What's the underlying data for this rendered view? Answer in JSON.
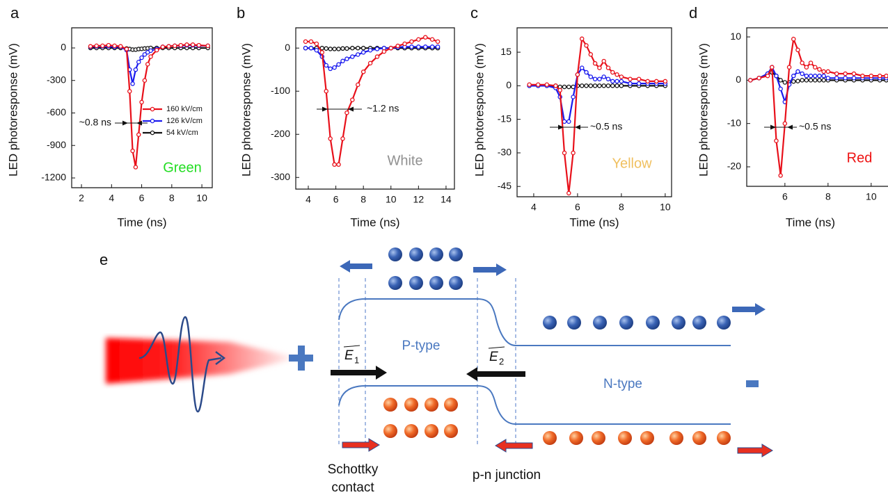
{
  "chart_data": [
    {
      "type": "line",
      "panel": "a",
      "ylabel": "LED photoresponse (mV)",
      "xlabel": "Time (ns)",
      "xlim": [
        1.35,
        10.69
      ],
      "xticks": [
        2,
        4,
        6,
        8,
        10
      ],
      "ylim": [
        -1290,
        186
      ],
      "yticks": [
        0,
        -300,
        -600,
        -900,
        -1200
      ],
      "x": [
        2.6,
        3.0,
        3.4,
        3.8,
        4.2,
        4.6,
        5.0,
        5.2,
        5.4,
        5.6,
        5.8,
        6.0,
        6.2,
        6.4,
        6.6,
        7.0,
        7.4,
        7.8,
        8.2,
        8.6,
        9.0,
        9.4,
        9.8,
        10.4
      ],
      "series": [
        {
          "name": "160 kV/cm",
          "color": "#e8101a",
          "values": [
            15,
            20,
            20,
            25,
            20,
            15,
            -10,
            -400,
            -950,
            -1100,
            -800,
            -500,
            -300,
            -150,
            -80,
            -20,
            10,
            15,
            20,
            25,
            30,
            30,
            25,
            20
          ]
        },
        {
          "name": "126 kV/cm",
          "color": "#1a1aee",
          "values": [
            10,
            15,
            15,
            15,
            10,
            10,
            -20,
            -200,
            -330,
            -200,
            -130,
            -90,
            -60,
            -40,
            -25,
            -10,
            10,
            15,
            20,
            20,
            25,
            25,
            20,
            20
          ]
        },
        {
          "name": "54 kV/cm",
          "color": "#111111",
          "values": [
            0,
            0,
            0,
            0,
            0,
            0,
            -5,
            -10,
            -15,
            -15,
            -10,
            -8,
            -5,
            -3,
            0,
            0,
            0,
            0,
            0,
            0,
            0,
            0,
            0,
            0
          ]
        }
      ],
      "legend": true,
      "annotation": "~0.8 ns",
      "label": "Green",
      "label_color": "#22dd22"
    },
    {
      "type": "line",
      "panel": "b",
      "ylabel": "LED photoresponse (mV)",
      "xlabel": "Time (ns)",
      "xlim": [
        3.09,
        14.61
      ],
      "xticks": [
        4,
        6,
        8,
        10,
        12,
        14
      ],
      "ylim": [
        -327,
        47
      ],
      "yticks": [
        0,
        -100,
        -200,
        -300
      ],
      "x": [
        3.8,
        4.2,
        4.6,
        5.0,
        5.3,
        5.6,
        5.9,
        6.2,
        6.5,
        6.8,
        7.2,
        7.6,
        8.0,
        8.5,
        9.0,
        9.5,
        10,
        10.5,
        11,
        11.5,
        12,
        12.5,
        13,
        13.4
      ],
      "series": [
        {
          "color": "#e8101a",
          "values": [
            15,
            15,
            10,
            -10,
            -100,
            -210,
            -270,
            -270,
            -210,
            -150,
            -120,
            -85,
            -55,
            -35,
            -20,
            -8,
            0,
            5,
            10,
            15,
            20,
            25,
            20,
            15
          ]
        },
        {
          "color": "#1a1aee",
          "values": [
            0,
            0,
            -5,
            -20,
            -40,
            -48,
            -45,
            -38,
            -30,
            -25,
            -20,
            -15,
            -10,
            -5,
            -2,
            0,
            0,
            2,
            3,
            3,
            3,
            3,
            3,
            3
          ]
        },
        {
          "color": "#111111",
          "values": [
            0,
            0,
            0,
            0,
            -1,
            -2,
            -2,
            -2,
            -1,
            -1,
            0,
            0,
            0,
            0,
            0,
            0,
            0,
            0,
            0,
            0,
            0,
            0,
            0,
            0
          ]
        }
      ],
      "legend": false,
      "annotation": "~1.2 ns",
      "label": "White",
      "label_color": "#909090"
    },
    {
      "type": "line",
      "panel": "c",
      "ylabel": "LED photoresponse (mV)",
      "xlabel": "Time (ns)",
      "xlim": [
        3.24,
        10.29
      ],
      "xticks": [
        4,
        6,
        8,
        10
      ],
      "ylim": [
        -49.6,
        25.9
      ],
      "yticks": [
        15,
        0,
        -15,
        -30,
        -45
      ],
      "x": [
        3.8,
        4.2,
        4.6,
        5.0,
        5.2,
        5.4,
        5.6,
        5.8,
        6.0,
        6.2,
        6.4,
        6.6,
        6.8,
        7.0,
        7.2,
        7.4,
        7.6,
        7.8,
        8.0,
        8.4,
        8.8,
        9.2,
        9.6,
        10.0
      ],
      "series": [
        {
          "color": "#e8101a",
          "values": [
            0.5,
            0.5,
            0.5,
            0,
            -2,
            -30,
            -48,
            -30,
            5,
            21,
            18,
            14,
            10,
            8,
            11,
            8,
            6,
            5,
            4,
            3,
            3,
            2,
            2,
            2
          ]
        },
        {
          "color": "#1a1aee",
          "values": [
            0,
            0,
            0,
            -1,
            -5,
            -16,
            -16,
            -5,
            5,
            8,
            6,
            4,
            3,
            3,
            4,
            3,
            2,
            2,
            2,
            1,
            1,
            1,
            1,
            1
          ]
        },
        {
          "color": "#111111",
          "values": [
            0,
            0,
            0,
            0,
            -0.5,
            -0.5,
            -0.5,
            -0.5,
            0,
            0,
            0,
            0,
            0,
            0,
            0,
            0,
            0,
            0,
            0,
            0,
            0,
            0,
            0,
            0
          ]
        }
      ],
      "legend": false,
      "annotation": "~0.5 ns",
      "label": "Yellow",
      "label_color": "#f0c060"
    },
    {
      "type": "line",
      "panel": "d",
      "ylabel": "LED photoresponse (mV)",
      "xlabel": "Time (ns)",
      "xlim": [
        4.23,
        10.78
      ],
      "xticks": [
        6,
        8,
        10
      ],
      "ylim": [
        -24.5,
        12.1
      ],
      "yticks": [
        10,
        0,
        -10,
        -20
      ],
      "x": [
        4.4,
        4.8,
        5.2,
        5.4,
        5.6,
        5.8,
        6.0,
        6.2,
        6.4,
        6.6,
        6.8,
        7.0,
        7.2,
        7.4,
        7.6,
        7.8,
        8.0,
        8.4,
        8.8,
        9.2,
        9.6,
        10.0,
        10.4,
        10.7
      ],
      "series": [
        {
          "color": "#e8101a",
          "values": [
            0,
            0.5,
            1,
            3,
            -14,
            -22,
            -10,
            3,
            9.5,
            7,
            4,
            3,
            4,
            3,
            2.5,
            2,
            2,
            1.5,
            1.5,
            1.5,
            1,
            1,
            1,
            1
          ]
        },
        {
          "color": "#1a1aee",
          "values": [
            0,
            0.5,
            1.5,
            3,
            1,
            -2,
            -5,
            -1,
            1,
            2,
            1.5,
            1,
            1,
            1,
            1,
            1,
            0.5,
            0.5,
            0.5,
            0.5,
            0.5,
            0.5,
            0.5,
            0.5
          ]
        },
        {
          "color": "#111111",
          "values": [
            0,
            0.5,
            1.5,
            1.8,
            1,
            0,
            -0.5,
            -0.5,
            -0.3,
            -0.2,
            0,
            0,
            0,
            0,
            0,
            0,
            0,
            0,
            0,
            0,
            0,
            0,
            0,
            0
          ]
        }
      ],
      "legend": false,
      "annotation": "~0.5 ns",
      "label": "Red",
      "label_color": "#ee1111"
    }
  ],
  "diagram": {
    "panel": "e",
    "p_type": "P-type",
    "n_type": "N-type",
    "field_1": {
      "symbol": "E",
      "subscript": "1"
    },
    "field_2": {
      "symbol": "E",
      "subscript": "2"
    },
    "schottky": [
      "Schottky",
      "contact"
    ],
    "junction": "p-n junction"
  }
}
